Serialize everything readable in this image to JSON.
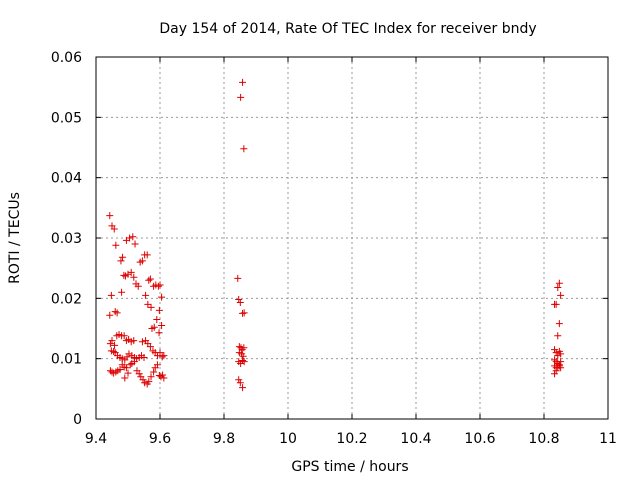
{
  "colors": {
    "marker": "#dd0000",
    "grid": "#999999",
    "axis": "#000000",
    "background": "#ffffff"
  },
  "chart_data": {
    "type": "scatter",
    "title": "Day 154 of 2014, Rate Of TEC Index for receiver bndy",
    "xlabel": "GPS time / hours",
    "ylabel": "ROTI / TECUs",
    "xlim": [
      9.4,
      11.0
    ],
    "ylim": [
      0,
      0.06
    ],
    "grid": true,
    "marker": "+",
    "xticks": [
      {
        "value": 9.4,
        "label": "9.4"
      },
      {
        "value": 9.6,
        "label": "9.6"
      },
      {
        "value": 9.8,
        "label": "9.8"
      },
      {
        "value": 10.0,
        "label": "10"
      },
      {
        "value": 10.2,
        "label": "10.2"
      },
      {
        "value": 10.4,
        "label": "10.4"
      },
      {
        "value": 10.6,
        "label": "10.6"
      },
      {
        "value": 10.8,
        "label": "10.8"
      },
      {
        "value": 11.0,
        "label": "11"
      }
    ],
    "yticks": [
      {
        "value": 0,
        "label": "0"
      },
      {
        "value": 0.01,
        "label": "0.01"
      },
      {
        "value": 0.02,
        "label": "0.02"
      },
      {
        "value": 0.03,
        "label": "0.03"
      },
      {
        "value": 0.04,
        "label": "0.04"
      },
      {
        "value": 0.05,
        "label": "0.05"
      },
      {
        "value": 0.06,
        "label": "0.06"
      }
    ],
    "series": [
      {
        "name": "ROTI",
        "points": [
          [
            9.443,
            0.0337
          ],
          [
            9.45,
            0.032
          ],
          [
            9.457,
            0.0315
          ],
          [
            9.462,
            0.0288
          ],
          [
            9.478,
            0.0262
          ],
          [
            9.483,
            0.0268
          ],
          [
            9.495,
            0.0296
          ],
          [
            9.505,
            0.03
          ],
          [
            9.515,
            0.0302
          ],
          [
            9.522,
            0.029
          ],
          [
            9.448,
            0.0205
          ],
          [
            9.46,
            0.0178
          ],
          [
            9.466,
            0.0176
          ],
          [
            9.443,
            0.0172
          ],
          [
            9.48,
            0.021
          ],
          [
            9.487,
            0.0238
          ],
          [
            9.492,
            0.0237
          ],
          [
            9.5,
            0.024
          ],
          [
            9.51,
            0.0243
          ],
          [
            9.518,
            0.0235
          ],
          [
            9.525,
            0.0224
          ],
          [
            9.532,
            0.022
          ],
          [
            9.538,
            0.026
          ],
          [
            9.545,
            0.0262
          ],
          [
            9.552,
            0.0272
          ],
          [
            9.56,
            0.0272
          ],
          [
            9.565,
            0.023
          ],
          [
            9.57,
            0.0232
          ],
          [
            9.555,
            0.0205
          ],
          [
            9.562,
            0.019
          ],
          [
            9.572,
            0.0185
          ],
          [
            9.58,
            0.022
          ],
          [
            9.587,
            0.0222
          ],
          [
            9.595,
            0.022
          ],
          [
            9.6,
            0.0222
          ],
          [
            9.605,
            0.0202
          ],
          [
            9.598,
            0.018
          ],
          [
            9.59,
            0.0165
          ],
          [
            9.582,
            0.0152
          ],
          [
            9.575,
            0.015
          ],
          [
            9.605,
            0.0155
          ],
          [
            9.597,
            0.0143
          ],
          [
            9.445,
            0.0125
          ],
          [
            9.45,
            0.013
          ],
          [
            9.458,
            0.0122
          ],
          [
            9.465,
            0.0138
          ],
          [
            9.472,
            0.014
          ],
          [
            9.48,
            0.0138
          ],
          [
            9.488,
            0.0138
          ],
          [
            9.495,
            0.013
          ],
          [
            9.502,
            0.0132
          ],
          [
            9.51,
            0.0128
          ],
          [
            9.518,
            0.013
          ],
          [
            9.448,
            0.0113
          ],
          [
            9.455,
            0.0112
          ],
          [
            9.46,
            0.011
          ],
          [
            9.467,
            0.0105
          ],
          [
            9.475,
            0.0102
          ],
          [
            9.482,
            0.01
          ],
          [
            9.49,
            0.0098
          ],
          [
            9.497,
            0.0103
          ],
          [
            9.503,
            0.0108
          ],
          [
            9.512,
            0.0105
          ],
          [
            9.52,
            0.0102
          ],
          [
            9.527,
            0.01
          ],
          [
            9.535,
            0.0102
          ],
          [
            9.542,
            0.0105
          ],
          [
            9.55,
            0.0102
          ],
          [
            9.545,
            0.0128
          ],
          [
            9.555,
            0.013
          ],
          [
            9.562,
            0.0125
          ],
          [
            9.57,
            0.012
          ],
          [
            9.578,
            0.0113
          ],
          [
            9.585,
            0.011
          ],
          [
            9.592,
            0.0105
          ],
          [
            9.6,
            0.011
          ],
          [
            9.607,
            0.0103
          ],
          [
            9.612,
            0.0105
          ],
          [
            9.445,
            0.008
          ],
          [
            9.45,
            0.0078
          ],
          [
            9.455,
            0.0076
          ],
          [
            9.462,
            0.0078
          ],
          [
            9.468,
            0.008
          ],
          [
            9.475,
            0.0082
          ],
          [
            9.482,
            0.009
          ],
          [
            9.488,
            0.0086
          ],
          [
            9.495,
            0.0085
          ],
          [
            9.5,
            0.0076
          ],
          [
            9.49,
            0.0068
          ],
          [
            9.507,
            0.009
          ],
          [
            9.512,
            0.0092
          ],
          [
            9.52,
            0.0095
          ],
          [
            9.528,
            0.008
          ],
          [
            9.535,
            0.0075
          ],
          [
            9.54,
            0.007
          ],
          [
            9.547,
            0.0065
          ],
          [
            9.552,
            0.006
          ],
          [
            9.56,
            0.0058
          ],
          [
            9.565,
            0.0062
          ],
          [
            9.572,
            0.007
          ],
          [
            9.58,
            0.0078
          ],
          [
            9.585,
            0.0085
          ],
          [
            9.592,
            0.009
          ],
          [
            9.598,
            0.0072
          ],
          [
            9.603,
            0.007
          ],
          [
            9.608,
            0.0073
          ],
          [
            9.612,
            0.0068
          ],
          [
            9.843,
            0.0233
          ],
          [
            9.846,
            0.0198
          ],
          [
            9.851,
            0.0193
          ],
          [
            9.858,
            0.0175
          ],
          [
            9.863,
            0.0176
          ],
          [
            9.848,
            0.012
          ],
          [
            9.853,
            0.0118
          ],
          [
            9.857,
            0.0115
          ],
          [
            9.862,
            0.0118
          ],
          [
            9.846,
            0.0095
          ],
          [
            9.852,
            0.0092
          ],
          [
            9.858,
            0.0097
          ],
          [
            9.863,
            0.0095
          ],
          [
            9.848,
            0.011
          ],
          [
            9.855,
            0.0108
          ],
          [
            9.86,
            0.0104
          ],
          [
            9.846,
            0.0065
          ],
          [
            9.851,
            0.006
          ],
          [
            9.858,
            0.0052
          ],
          [
            9.852,
            0.0533
          ],
          [
            9.858,
            0.0558
          ],
          [
            9.862,
            0.0448
          ],
          [
            10.833,
            0.019
          ],
          [
            10.838,
            0.019
          ],
          [
            10.843,
            0.0218
          ],
          [
            10.848,
            0.0225
          ],
          [
            10.852,
            0.0205
          ],
          [
            10.848,
            0.0158
          ],
          [
            10.843,
            0.0138
          ],
          [
            10.833,
            0.0115
          ],
          [
            10.838,
            0.011
          ],
          [
            10.843,
            0.0105
          ],
          [
            10.848,
            0.0112
          ],
          [
            10.852,
            0.0108
          ],
          [
            10.833,
            0.0098
          ],
          [
            10.838,
            0.0095
          ],
          [
            10.843,
            0.0092
          ],
          [
            10.848,
            0.009
          ],
          [
            10.852,
            0.0095
          ],
          [
            10.833,
            0.0088
          ],
          [
            10.838,
            0.0085
          ],
          [
            10.843,
            0.0085
          ],
          [
            10.848,
            0.0088
          ],
          [
            10.852,
            0.0085
          ],
          [
            10.833,
            0.0075
          ],
          [
            10.838,
            0.008
          ]
        ]
      }
    ]
  }
}
